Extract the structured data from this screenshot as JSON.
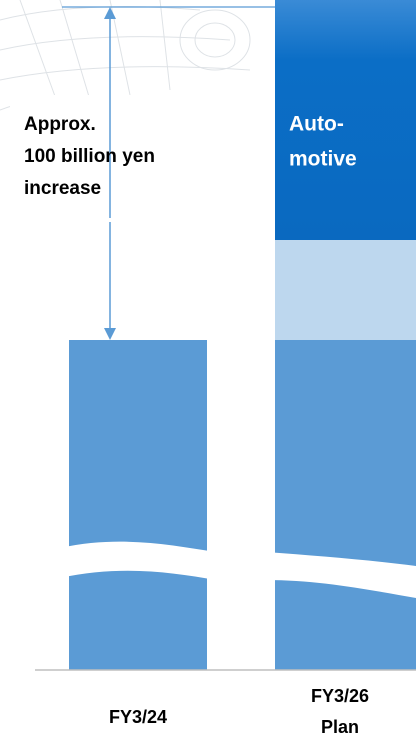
{
  "annotation": {
    "lines": [
      "Approx.",
      "100 billion yen",
      "increase"
    ]
  },
  "segment_label": {
    "lines": [
      "Auto-",
      "motive"
    ]
  },
  "categories": [
    {
      "lines": [
        "FY3/24"
      ]
    },
    {
      "lines": [
        "FY3/26",
        "Plan"
      ]
    }
  ]
}
